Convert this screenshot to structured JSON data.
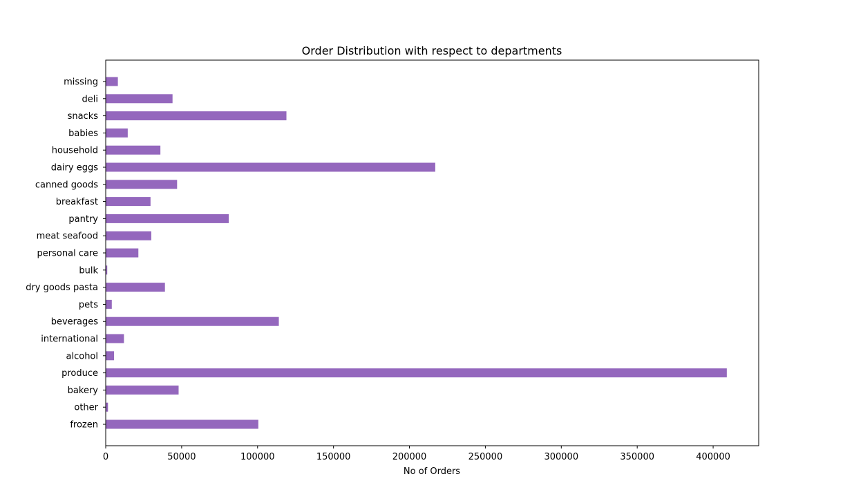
{
  "chart_data": {
    "type": "bar",
    "orientation": "horizontal",
    "title": "Order Distribution with respect to departments",
    "xlabel": "No of Orders",
    "ylabel": "",
    "xlim": [
      0,
      430000
    ],
    "xticks": [
      0,
      50000,
      100000,
      150000,
      200000,
      250000,
      300000,
      350000,
      400000
    ],
    "grid": false,
    "bar_color": "#9467bd",
    "categories": [
      "missing",
      "deli",
      "snacks",
      "babies",
      "household",
      "dairy eggs",
      "canned goods",
      "breakfast",
      "pantry",
      "meat seafood",
      "personal care",
      "bulk",
      "dry goods pasta",
      "pets",
      "beverages",
      "international",
      "alcohol",
      "produce",
      "bakery",
      "other",
      "frozen"
    ],
    "values": [
      8000,
      44000,
      119000,
      14500,
      36000,
      217000,
      47000,
      29500,
      81000,
      30000,
      21500,
      1000,
      39000,
      4000,
      114000,
      12000,
      5500,
      409000,
      48000,
      1500,
      100500
    ]
  }
}
